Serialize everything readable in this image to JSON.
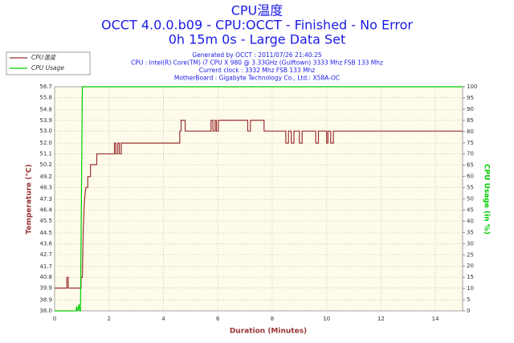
{
  "chart_data": {
    "type": "line",
    "title": "CPU温度",
    "subtitle": [
      "OCCT 4.0.0.b09 - CPU:OCCT - Finished - No Error",
      "0h 15m 0s - Large Data Set"
    ],
    "info": [
      "Generated by OCCT : 2011/07/26 21:40:25",
      "CPU : Intel(R) Core(TM) i7 CPU X 980 @ 3.33GHz (Gulftown) 3333 Mhz FSB 133 Mhz",
      "Current clock : 3332 Mhz FSB 133 Mhz",
      "MotherBoard : Gigabyte Technology Co., Ltd.: X58A-OC"
    ],
    "xlabel": "Duration (Minutes)",
    "ylabel": "Temperature (°C)",
    "y2label": "CPU Usage (in %)",
    "xlim": [
      0,
      15
    ],
    "xticks": [
      0,
      2,
      4,
      6,
      8,
      10,
      12,
      14
    ],
    "ylim": [
      38,
      56.7
    ],
    "yticks": [
      {
        "value": 38,
        "label": "38.0"
      },
      38.9,
      39.9,
      40.8,
      41.7,
      42.7,
      43.6,
      44.5,
      45.5,
      46.4,
      47.3,
      48.3,
      49.2,
      50.2,
      51.1,
      {
        "value": 52,
        "label": "52.0"
      },
      {
        "value": 53,
        "label": "53.0"
      },
      53.9,
      54.8,
      55.8,
      56.7
    ],
    "y2lim": [
      0,
      100
    ],
    "y2ticks": [
      0,
      5,
      10,
      15,
      20,
      25,
      30,
      35,
      40,
      45,
      50,
      55,
      60,
      65,
      70,
      75,
      80,
      85,
      90,
      95,
      100
    ],
    "grid": true,
    "legend": "top-left",
    "series": [
      {
        "name": "CPU温度",
        "color": "#993333",
        "x": [
          0,
          0.45,
          0.45,
          0.5,
          0.5,
          0.97,
          0.97,
          1.02,
          1.05,
          1.08,
          1.1,
          1.15,
          1.22,
          1.22,
          1.32,
          1.32,
          1.55,
          1.55,
          2.2,
          2.2,
          2.25,
          2.25,
          2.32,
          2.32,
          2.38,
          2.38,
          2.45,
          2.45,
          4.6,
          4.6,
          4.65,
          4.65,
          4.8,
          4.8,
          5.75,
          5.75,
          5.82,
          5.82,
          5.9,
          5.9,
          5.95,
          5.95,
          6.02,
          6.02,
          7.1,
          7.1,
          7.2,
          7.2,
          7.7,
          7.7,
          8.5,
          8.5,
          8.6,
          8.6,
          8.7,
          8.7,
          8.8,
          8.8,
          9.0,
          9.0,
          9.1,
          9.1,
          9.6,
          9.6,
          9.7,
          9.7,
          10.0,
          10.0,
          10.05,
          10.05,
          10.15,
          10.15,
          10.25,
          10.25,
          15
        ],
        "values": [
          39.9,
          39.9,
          40.8,
          40.8,
          39.9,
          39.9,
          40.8,
          40.8,
          44.5,
          46.4,
          47.3,
          48.3,
          48.3,
          49.2,
          49.2,
          50.2,
          50.2,
          51.1,
          51.1,
          52,
          52,
          51.1,
          51.1,
          52,
          52,
          51.1,
          51.1,
          52,
          52,
          53,
          53,
          53.9,
          53.9,
          53,
          53,
          53.9,
          53.9,
          53,
          53,
          53.9,
          53.9,
          53,
          53,
          53.9,
          53.9,
          53,
          53,
          53.9,
          53.9,
          53,
          53,
          52,
          52,
          53,
          53,
          52,
          52,
          53,
          53,
          52,
          52,
          53,
          53,
          52,
          52,
          53,
          53,
          52,
          52,
          53,
          53,
          52,
          52,
          53,
          53
        ]
      },
      {
        "name": "CPU Usage",
        "color": "#00cc00",
        "axis": "y2",
        "x": [
          0,
          0.8,
          0.8,
          0.85,
          0.9,
          0.92,
          0.95,
          1.02,
          15
        ],
        "values": [
          0,
          0,
          2,
          0,
          3,
          0,
          0,
          100,
          100
        ]
      }
    ]
  }
}
